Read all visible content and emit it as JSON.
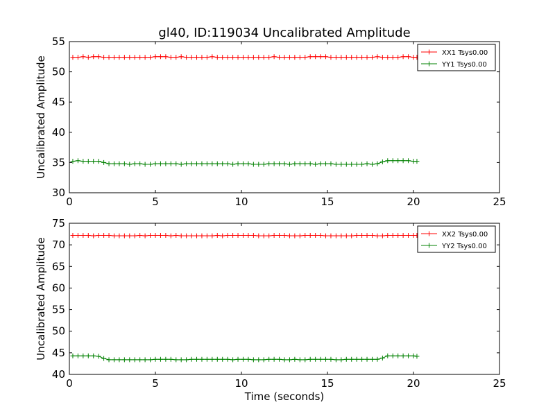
{
  "figure": {
    "title": "gl40, ID:119034 Uncalibrated Amplitude"
  },
  "chart_data": [
    {
      "type": "line",
      "xlabel": "",
      "ylabel": "Uncalibrated Amplitude",
      "xlim": [
        0,
        25
      ],
      "ylim": [
        30,
        55
      ],
      "xticks": [
        0,
        5,
        10,
        15,
        20,
        25
      ],
      "yticks": [
        30,
        35,
        40,
        45,
        50,
        55
      ],
      "grid": false,
      "legend_position": "top-right",
      "x": [
        0.2,
        0.5,
        0.8,
        1.1,
        1.4,
        1.7,
        2.0,
        2.3,
        2.6,
        2.9,
        3.2,
        3.5,
        3.8,
        4.1,
        4.4,
        4.7,
        5.0,
        5.3,
        5.6,
        5.9,
        6.2,
        6.5,
        6.8,
        7.1,
        7.4,
        7.7,
        8.0,
        8.3,
        8.6,
        8.9,
        9.2,
        9.5,
        9.8,
        10.1,
        10.4,
        10.7,
        11.0,
        11.3,
        11.6,
        11.9,
        12.2,
        12.5,
        12.8,
        13.1,
        13.4,
        13.7,
        14.0,
        14.3,
        14.6,
        14.9,
        15.2,
        15.5,
        15.8,
        16.1,
        16.4,
        16.7,
        17.0,
        17.3,
        17.6,
        17.9,
        18.2,
        18.5,
        18.8,
        19.1,
        19.4,
        19.7,
        20.0,
        20.2
      ],
      "series": [
        {
          "name": "XX1 Tsys0.00",
          "color": "#ff0000",
          "values": [
            52.4,
            52.4,
            52.5,
            52.4,
            52.5,
            52.5,
            52.4,
            52.4,
            52.4,
            52.4,
            52.4,
            52.4,
            52.4,
            52.4,
            52.4,
            52.4,
            52.5,
            52.5,
            52.5,
            52.4,
            52.4,
            52.5,
            52.4,
            52.4,
            52.4,
            52.4,
            52.4,
            52.5,
            52.4,
            52.4,
            52.4,
            52.4,
            52.4,
            52.4,
            52.4,
            52.4,
            52.4,
            52.4,
            52.4,
            52.5,
            52.4,
            52.4,
            52.4,
            52.4,
            52.4,
            52.4,
            52.5,
            52.5,
            52.5,
            52.5,
            52.4,
            52.4,
            52.4,
            52.4,
            52.4,
            52.4,
            52.4,
            52.4,
            52.4,
            52.5,
            52.4,
            52.4,
            52.4,
            52.4,
            52.5,
            52.5,
            52.4,
            52.4
          ]
        },
        {
          "name": "YY1 Tsys0.00",
          "color": "#008000",
          "values": [
            35.2,
            35.3,
            35.2,
            35.2,
            35.2,
            35.2,
            35.0,
            34.8,
            34.8,
            34.8,
            34.8,
            34.7,
            34.8,
            34.8,
            34.7,
            34.7,
            34.8,
            34.8,
            34.8,
            34.8,
            34.8,
            34.7,
            34.8,
            34.8,
            34.8,
            34.8,
            34.8,
            34.8,
            34.8,
            34.8,
            34.8,
            34.7,
            34.8,
            34.8,
            34.8,
            34.7,
            34.7,
            34.7,
            34.8,
            34.8,
            34.8,
            34.8,
            34.7,
            34.8,
            34.8,
            34.8,
            34.8,
            34.7,
            34.8,
            34.8,
            34.8,
            34.7,
            34.7,
            34.7,
            34.7,
            34.7,
            34.7,
            34.8,
            34.7,
            34.8,
            35.1,
            35.3,
            35.3,
            35.3,
            35.3,
            35.3,
            35.2,
            35.2
          ]
        }
      ]
    },
    {
      "type": "line",
      "xlabel": "Time (seconds)",
      "ylabel": "Uncalibrated Amplitude",
      "xlim": [
        0,
        25
      ],
      "ylim": [
        40,
        75
      ],
      "xticks": [
        0,
        5,
        10,
        15,
        20,
        25
      ],
      "yticks": [
        40,
        45,
        50,
        55,
        60,
        65,
        70,
        75
      ],
      "grid": false,
      "legend_position": "top-right",
      "x": [
        0.2,
        0.5,
        0.8,
        1.1,
        1.4,
        1.7,
        2.0,
        2.3,
        2.6,
        2.9,
        3.2,
        3.5,
        3.8,
        4.1,
        4.4,
        4.7,
        5.0,
        5.3,
        5.6,
        5.9,
        6.2,
        6.5,
        6.8,
        7.1,
        7.4,
        7.7,
        8.0,
        8.3,
        8.6,
        8.9,
        9.2,
        9.5,
        9.8,
        10.1,
        10.4,
        10.7,
        11.0,
        11.3,
        11.6,
        11.9,
        12.2,
        12.5,
        12.8,
        13.1,
        13.4,
        13.7,
        14.0,
        14.3,
        14.6,
        14.9,
        15.2,
        15.5,
        15.8,
        16.1,
        16.4,
        16.7,
        17.0,
        17.3,
        17.6,
        17.9,
        18.2,
        18.5,
        18.8,
        19.1,
        19.4,
        19.7,
        20.0,
        20.2
      ],
      "series": [
        {
          "name": "XX2 Tsys0.00",
          "color": "#ff0000",
          "values": [
            72.2,
            72.2,
            72.2,
            72.2,
            72.1,
            72.2,
            72.2,
            72.2,
            72.1,
            72.1,
            72.1,
            72.1,
            72.1,
            72.2,
            72.1,
            72.2,
            72.2,
            72.2,
            72.2,
            72.1,
            72.2,
            72.1,
            72.1,
            72.1,
            72.1,
            72.1,
            72.1,
            72.1,
            72.2,
            72.1,
            72.2,
            72.2,
            72.2,
            72.2,
            72.2,
            72.2,
            72.1,
            72.1,
            72.1,
            72.2,
            72.2,
            72.2,
            72.1,
            72.1,
            72.1,
            72.2,
            72.2,
            72.2,
            72.2,
            72.1,
            72.1,
            72.1,
            72.1,
            72.1,
            72.1,
            72.2,
            72.2,
            72.2,
            72.2,
            72.1,
            72.1,
            72.2,
            72.2,
            72.2,
            72.2,
            72.2,
            72.2,
            72.2
          ]
        },
        {
          "name": "YY2 Tsys0.00",
          "color": "#008000",
          "values": [
            44.3,
            44.3,
            44.3,
            44.3,
            44.3,
            44.2,
            43.7,
            43.4,
            43.4,
            43.4,
            43.4,
            43.4,
            43.4,
            43.4,
            43.4,
            43.4,
            43.5,
            43.5,
            43.5,
            43.5,
            43.4,
            43.4,
            43.4,
            43.5,
            43.5,
            43.5,
            43.5,
            43.5,
            43.5,
            43.5,
            43.5,
            43.4,
            43.5,
            43.5,
            43.5,
            43.4,
            43.4,
            43.4,
            43.5,
            43.5,
            43.5,
            43.4,
            43.4,
            43.5,
            43.4,
            43.4,
            43.5,
            43.5,
            43.5,
            43.5,
            43.5,
            43.4,
            43.4,
            43.5,
            43.5,
            43.5,
            43.5,
            43.5,
            43.5,
            43.5,
            43.8,
            44.3,
            44.3,
            44.3,
            44.3,
            44.3,
            44.3,
            44.2
          ]
        }
      ]
    }
  ]
}
